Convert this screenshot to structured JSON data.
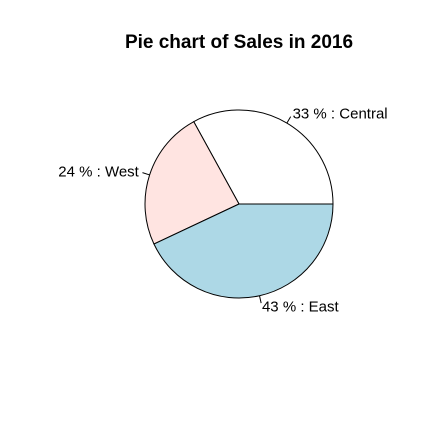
{
  "chart_data": {
    "type": "pie",
    "title": "Pie chart of Sales in 2016",
    "slices": [
      {
        "category": "Central",
        "percent": 33,
        "label": "33 % : Central",
        "color": "#ffffff"
      },
      {
        "category": "West",
        "percent": 24,
        "label": "24 % : West",
        "color": "#ffe4e1"
      },
      {
        "category": "East",
        "percent": 43,
        "label": "43 % : East",
        "color": "#add8e6"
      }
    ],
    "start_angle_deg": 0,
    "direction": "counterclockwise"
  }
}
